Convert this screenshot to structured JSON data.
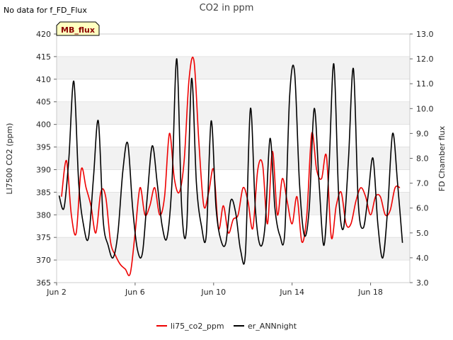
{
  "note": "No data for f_FD_Flux",
  "chart_data": {
    "type": "line",
    "title": "CO2 in ppm",
    "site_label": "MB_flux",
    "ylabel": "LI7500 CO2 (ppm)",
    "y2label": "FD Chamber flux",
    "ylim": [
      365,
      420
    ],
    "y2lim": [
      3.0,
      13.0
    ],
    "yticks": [
      365,
      370,
      375,
      380,
      385,
      390,
      395,
      400,
      405,
      410,
      415,
      420
    ],
    "y2ticks": [
      "3.0",
      "4.0",
      "5.0",
      "6.0",
      "7.0",
      "8.0",
      "9.0",
      "10.0",
      "11.0",
      "12.0",
      "13.0"
    ],
    "xlim": [
      "2024-06-02",
      "2024-06-20"
    ],
    "xticks": [
      {
        "date": "2024-06-02",
        "label": "Jun 2"
      },
      {
        "date": "2024-06-06",
        "label": "Jun 6"
      },
      {
        "date": "2024-06-10",
        "label": "Jun 10"
      },
      {
        "date": "2024-06-14",
        "label": "Jun 14"
      },
      {
        "date": "2024-06-18",
        "label": "Jun 18"
      }
    ],
    "grid": true,
    "legend_placement": "bottom-center",
    "colors": {
      "li75_co2_ppm": "#ee0000",
      "er_ANNnight": "#000000",
      "band": "#f2f2f2",
      "grid": "#dddddd",
      "label_box": "#ffffc0"
    },
    "series": [
      {
        "name": "li75_co2_ppm",
        "axis": "left",
        "x": [
          "2024-06-02T06:00",
          "2024-06-02T12:00",
          "2024-06-02T18:00",
          "2024-06-03T00:00",
          "2024-06-03T06:00",
          "2024-06-03T12:00",
          "2024-06-03T18:00",
          "2024-06-04T00:00",
          "2024-06-04T06:00",
          "2024-06-04T12:00",
          "2024-06-04T18:00",
          "2024-06-05T00:00",
          "2024-06-05T06:00",
          "2024-06-05T12:00",
          "2024-06-05T18:00",
          "2024-06-06T00:00",
          "2024-06-06T06:00",
          "2024-06-06T12:00",
          "2024-06-06T18:00",
          "2024-06-07T00:00",
          "2024-06-07T06:00",
          "2024-06-07T12:00",
          "2024-06-07T18:00",
          "2024-06-08T00:00",
          "2024-06-08T06:00",
          "2024-06-08T12:00",
          "2024-06-08T18:00",
          "2024-06-09T00:00",
          "2024-06-09T06:00",
          "2024-06-09T12:00",
          "2024-06-09T18:00",
          "2024-06-10T00:00",
          "2024-06-10T06:00",
          "2024-06-10T12:00",
          "2024-06-10T18:00",
          "2024-06-11T00:00",
          "2024-06-11T06:00",
          "2024-06-11T12:00",
          "2024-06-11T18:00",
          "2024-06-12T00:00",
          "2024-06-12T06:00",
          "2024-06-12T12:00",
          "2024-06-12T18:00",
          "2024-06-13T00:00",
          "2024-06-13T06:00",
          "2024-06-13T12:00",
          "2024-06-13T18:00",
          "2024-06-14T00:00",
          "2024-06-14T06:00",
          "2024-06-14T12:00",
          "2024-06-14T18:00",
          "2024-06-15T00:00",
          "2024-06-15T06:00",
          "2024-06-15T12:00",
          "2024-06-15T18:00",
          "2024-06-16T00:00",
          "2024-06-16T06:00",
          "2024-06-16T12:00",
          "2024-06-16T18:00",
          "2024-06-17T00:00",
          "2024-06-17T06:00",
          "2024-06-17T12:00",
          "2024-06-17T18:00",
          "2024-06-18T00:00",
          "2024-06-18T06:00",
          "2024-06-18T12:00",
          "2024-06-18T18:00",
          "2024-06-19T00:00",
          "2024-06-19T06:00",
          "2024-06-19T12:00"
        ],
        "values": [
          384,
          392,
          380,
          376,
          390,
          386,
          382,
          376,
          385,
          384,
          374,
          371,
          369,
          368,
          367,
          376,
          386,
          380,
          382,
          386,
          380,
          384,
          398,
          388,
          385,
          392,
          410,
          414,
          396,
          382,
          385,
          390,
          377,
          382,
          376,
          379,
          380,
          386,
          383,
          377,
          390,
          391,
          378,
          394,
          380,
          388,
          383,
          378,
          384,
          374,
          380,
          398,
          390,
          388,
          393,
          375,
          382,
          385,
          378,
          378,
          383,
          386,
          384,
          380,
          384,
          384,
          380,
          381,
          386,
          386
        ]
      },
      {
        "name": "er_ANNnight",
        "axis": "right",
        "x": [
          "2024-06-02T03:00",
          "2024-06-02T09:00",
          "2024-06-02T15:00",
          "2024-06-02T21:00",
          "2024-06-03T03:00",
          "2024-06-03T09:00",
          "2024-06-03T15:00",
          "2024-06-03T21:00",
          "2024-06-04T03:00",
          "2024-06-04T09:00",
          "2024-06-04T15:00",
          "2024-06-04T21:00",
          "2024-06-05T03:00",
          "2024-06-05T09:00",
          "2024-06-05T15:00",
          "2024-06-05T21:00",
          "2024-06-06T03:00",
          "2024-06-06T09:00",
          "2024-06-06T15:00",
          "2024-06-06T21:00",
          "2024-06-07T03:00",
          "2024-06-07T09:00",
          "2024-06-07T15:00",
          "2024-06-07T21:00",
          "2024-06-08T03:00",
          "2024-06-08T09:00",
          "2024-06-08T15:00",
          "2024-06-08T21:00",
          "2024-06-09T03:00",
          "2024-06-09T09:00",
          "2024-06-09T15:00",
          "2024-06-09T21:00",
          "2024-06-10T03:00",
          "2024-06-10T09:00",
          "2024-06-10T15:00",
          "2024-06-10T21:00",
          "2024-06-11T03:00",
          "2024-06-11T09:00",
          "2024-06-11T15:00",
          "2024-06-11T21:00",
          "2024-06-12T03:00",
          "2024-06-12T09:00",
          "2024-06-12T15:00",
          "2024-06-12T21:00",
          "2024-06-13T03:00",
          "2024-06-13T09:00",
          "2024-06-13T15:00",
          "2024-06-13T21:00",
          "2024-06-14T03:00",
          "2024-06-14T09:00",
          "2024-06-14T15:00",
          "2024-06-14T21:00",
          "2024-06-15T03:00",
          "2024-06-15T09:00",
          "2024-06-15T15:00",
          "2024-06-15T21:00",
          "2024-06-16T03:00",
          "2024-06-16T09:00",
          "2024-06-16T15:00",
          "2024-06-16T21:00",
          "2024-06-17T03:00",
          "2024-06-17T09:00",
          "2024-06-17T15:00",
          "2024-06-17T21:00",
          "2024-06-18T03:00",
          "2024-06-18T09:00",
          "2024-06-18T15:00",
          "2024-06-18T21:00",
          "2024-06-19T03:00",
          "2024-06-19T09:00",
          "2024-06-19T15:00"
        ],
        "values": [
          6.5,
          6.0,
          8.0,
          11.1,
          7.0,
          5.3,
          4.8,
          7.2,
          9.5,
          5.5,
          4.5,
          4.0,
          5.0,
          7.5,
          8.6,
          6.0,
          4.3,
          4.2,
          6.5,
          8.5,
          7.0,
          5.3,
          4.8,
          7.0,
          12.0,
          6.0,
          5.2,
          11.2,
          7.0,
          5.3,
          4.9,
          9.5,
          6.0,
          4.7,
          4.6,
          6.3,
          5.8,
          4.3,
          4.2,
          10.0,
          6.0,
          4.5,
          5.3,
          8.8,
          6.0,
          4.9,
          5.0,
          10.5,
          11.5,
          7.0,
          4.9,
          6.0,
          10.0,
          7.0,
          4.5,
          7.5,
          11.8,
          6.5,
          5.2,
          8.0,
          11.6,
          6.2,
          5.2,
          6.5,
          8.0,
          5.3,
          4.0,
          6.0,
          9.0,
          7.0,
          4.6
        ]
      }
    ]
  },
  "legend": [
    {
      "label": "li75_co2_ppm",
      "color": "#ee0000"
    },
    {
      "label": "er_ANNnight",
      "color": "#000000"
    }
  ]
}
